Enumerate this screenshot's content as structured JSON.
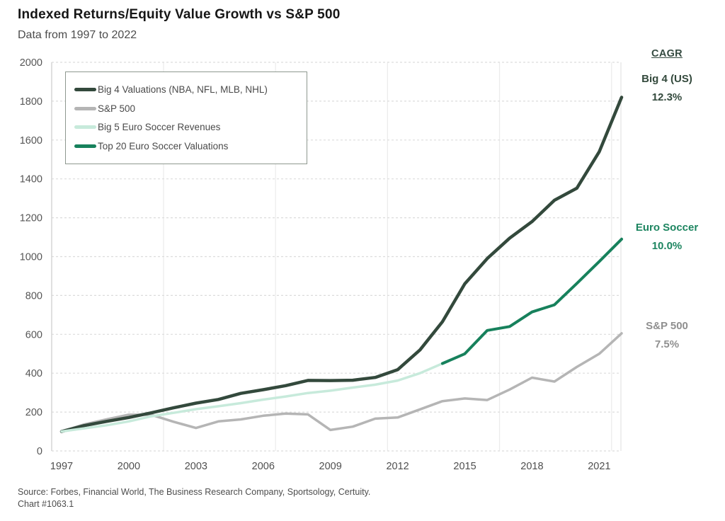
{
  "header": {
    "title": "Indexed Returns/Equity Value Growth vs S&P 500",
    "subtitle": "Data from 1997 to 2022"
  },
  "legend": {
    "items": [
      {
        "label": "Big 4 Valuations (NBA, NFL, MLB, NHL)",
        "color": "#33493c"
      },
      {
        "label": "S&P 500",
        "color": "#b5b5b5"
      },
      {
        "label": "Big 5 Euro Soccer Revenues",
        "color": "#c7eadb"
      },
      {
        "label": "Top 20 Euro Soccer Valuations",
        "color": "#17815c"
      }
    ]
  },
  "cagr": {
    "header": "CAGR",
    "entries": [
      {
        "label": "Big 4 (US)",
        "value": "12.3%",
        "color": "#33493c"
      },
      {
        "label": "Euro Soccer",
        "value": "10.0%",
        "color": "#1d8560"
      },
      {
        "label": "S&P 500",
        "value": "7.5%",
        "color": "#8f8f8f"
      }
    ]
  },
  "chart_data": {
    "type": "line",
    "title": "Indexed Returns/Equity Value Growth vs S&P 500",
    "x_range": [
      1997,
      2022
    ],
    "x_ticks": [
      1997,
      2000,
      2003,
      2006,
      2009,
      2012,
      2015,
      2018,
      2021
    ],
    "y_min": 0,
    "y_max": 2000,
    "y_tick_step": 200,
    "grid": {
      "horizontal": "dashed",
      "vertical_years": [
        2001.55,
        2006.55,
        2011.55,
        2016.55,
        2021.55
      ]
    },
    "legend_position": "top-left",
    "series": [
      {
        "name": "S&P 500",
        "color": "#b5b5b5",
        "width": 3.5,
        "x": [
          1997,
          1998,
          1999,
          2000,
          2001,
          2002,
          2003,
          2004,
          2005,
          2006,
          2007,
          2008,
          2009,
          2010,
          2011,
          2012,
          2013,
          2014,
          2015,
          2016,
          2017,
          2018,
          2019,
          2020,
          2021,
          2022
        ],
        "values": [
          100,
          136,
          162,
          186,
          186,
          150,
          118,
          152,
          162,
          181,
          192,
          188,
          108,
          125,
          166,
          172,
          214,
          256,
          270,
          262,
          316,
          377,
          357,
          432,
          500,
          605
        ]
      },
      {
        "name": "Big 4 Valuations (NBA, NFL, MLB, NHL)",
        "color": "#33493c",
        "width": 4.5,
        "x": [
          1997,
          1998,
          1999,
          2000,
          2001,
          2002,
          2003,
          2004,
          2005,
          2006,
          2007,
          2008,
          2009,
          2010,
          2011,
          2012,
          2013,
          2014,
          2015,
          2016,
          2017,
          2018,
          2019,
          2020,
          2021,
          2022
        ],
        "values": [
          100,
          130,
          152,
          172,
          196,
          222,
          246,
          265,
          296,
          315,
          336,
          363,
          362,
          364,
          378,
          418,
          520,
          665,
          860,
          990,
          1095,
          1180,
          1290,
          1352,
          1540,
          1820
        ]
      },
      {
        "name": "Big 5 Euro Soccer Revenues",
        "color": "#c7eadb",
        "width": 3.5,
        "x": [
          1997,
          1998,
          1999,
          2000,
          2001,
          2002,
          2003,
          2004,
          2005,
          2006,
          2007,
          2008,
          2009,
          2010,
          2011,
          2012,
          2013,
          2014
        ],
        "values": [
          100,
          116,
          132,
          152,
          178,
          196,
          215,
          230,
          246,
          264,
          280,
          298,
          310,
          326,
          341,
          362,
          400,
          450
        ]
      },
      {
        "name": "Top 20 Euro Soccer Valuations",
        "color": "#17815c",
        "width": 4,
        "x": [
          2014,
          2015,
          2016,
          2017,
          2018,
          2019,
          2020,
          2021,
          2022
        ],
        "values": [
          450,
          500,
          620,
          640,
          715,
          752,
          862,
          975,
          1090
        ]
      }
    ]
  },
  "footer": {
    "source": "Source: Forbes, Financial World, The Business Research Company, Sportsology, Certuity.",
    "chart_number": "Chart #1063.1"
  }
}
